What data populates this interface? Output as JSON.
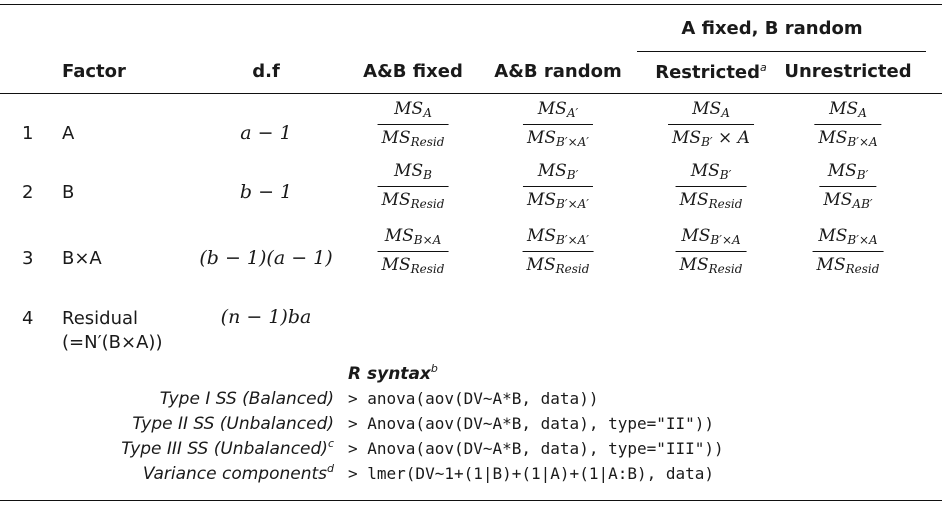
{
  "header": {
    "group_label": "A fixed, B random",
    "factor": "Factor",
    "df": "d.f",
    "ab_fixed": "A&B fixed",
    "ab_random": "A&B random",
    "restricted": "Restricted",
    "restricted_fn": "a",
    "unrestricted": "Unrestricted"
  },
  "rows": [
    {
      "num": "1",
      "factor": "A",
      "df": "a − 1",
      "cells": [
        {
          "num": "MS",
          "num_sub": "A",
          "den": "MS",
          "den_sub": "Resid",
          "den_tail": ""
        },
        {
          "num": "MS",
          "num_sub": "A′",
          "den": "MS",
          "den_sub": "B′×A′",
          "den_tail": ""
        },
        {
          "num": "MS",
          "num_sub": "A",
          "den": "MS",
          "den_sub": "B′",
          "den_tail": " × A"
        },
        {
          "num": "MS",
          "num_sub": "A",
          "den": "MS",
          "den_sub": "B′×A",
          "den_tail": ""
        }
      ]
    },
    {
      "num": "2",
      "factor": "B",
      "df": "b − 1",
      "cells": [
        {
          "num": "MS",
          "num_sub": "B",
          "den": "MS",
          "den_sub": "Resid",
          "den_tail": ""
        },
        {
          "num": "MS",
          "num_sub": "B′",
          "den": "MS",
          "den_sub": "B′×A′",
          "den_tail": ""
        },
        {
          "num": "MS",
          "num_sub": "B′",
          "den": "MS",
          "den_sub": "Resid",
          "den_tail": ""
        },
        {
          "num": "MS",
          "num_sub": "B′",
          "den": "MS",
          "den_sub": "AB′",
          "den_tail": ""
        }
      ]
    },
    {
      "num": "3",
      "factor": "B×A",
      "df": "(b − 1)(a − 1)",
      "cells": [
        {
          "num": "MS",
          "num_sub": "B×A",
          "den": "MS",
          "den_sub": "Resid",
          "den_tail": ""
        },
        {
          "num": "MS",
          "num_sub": "B′×A′",
          "den": "MS",
          "den_sub": "Resid",
          "den_tail": ""
        },
        {
          "num": "MS",
          "num_sub": "B′×A",
          "den": "MS",
          "den_sub": "Resid",
          "den_tail": ""
        },
        {
          "num": "MS",
          "num_sub": "B′×A",
          "den": "MS",
          "den_sub": "Resid",
          "den_tail": ""
        }
      ]
    },
    {
      "num": "4",
      "factor": "Residual",
      "factor_line2": "(=N′(B×A))",
      "df": "(n − 1)ba"
    }
  ],
  "syntax": {
    "title": "R syntax",
    "title_fn": "b",
    "lines": [
      {
        "label": "Type I SS (Balanced)",
        "fn": "",
        "code": "> anova(aov(DV~A*B, data))"
      },
      {
        "label": "Type II SS (Unbalanced)",
        "fn": "",
        "code": "> Anova(aov(DV~A*B, data), type=\"II\"))"
      },
      {
        "label": "Type III SS (Unbalanced)",
        "fn": "c",
        "code": "> Anova(aov(DV~A*B, data), type=\"III\"))"
      },
      {
        "label": "Variance components",
        "fn": "d",
        "code": "> lmer(DV~1+(1|B)+(1|A)+(1|A:B), data)"
      }
    ]
  }
}
